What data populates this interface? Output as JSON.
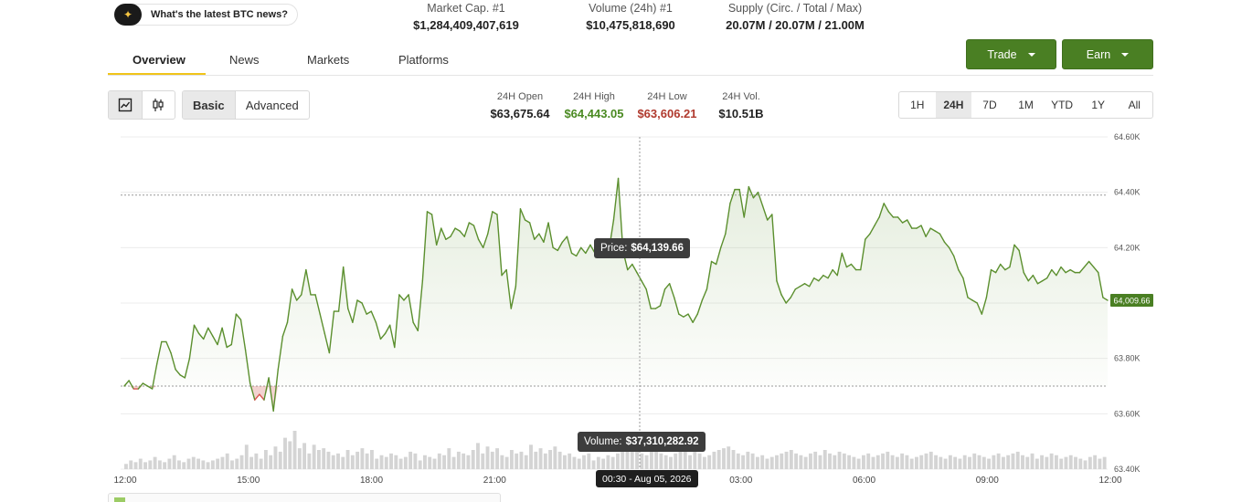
{
  "news_pill": {
    "icon": "sparkle-icon",
    "label": "What's the latest BTC news?"
  },
  "stats": [
    {
      "label": "Market Cap. #1",
      "value": "$1,284,409,407,619"
    },
    {
      "label": "Volume (24h) #1",
      "value": "$10,475,818,690"
    },
    {
      "label": "Supply (Circ. / Total / Max)",
      "value": "20.07M / 20.07M / 21.00M"
    }
  ],
  "tabs": [
    "Overview",
    "News",
    "Markets",
    "Platforms"
  ],
  "active_tab": "Overview",
  "buttons": {
    "trade": "Trade",
    "earn": "Earn"
  },
  "chart_mode": {
    "basic": "Basic",
    "advanced": "Advanced",
    "selected": "Basic"
  },
  "day_stats": [
    {
      "label": "24H Open",
      "value": "$63,675.64",
      "color": "#222222"
    },
    {
      "label": "24H High",
      "value": "$64,443.05",
      "color": "#4a8a22"
    },
    {
      "label": "24H Low",
      "value": "$63,606.21",
      "color": "#c0392b"
    },
    {
      "label": "24H Vol.",
      "value": "$10.51B",
      "color": "#222222"
    }
  ],
  "ranges": [
    "1H",
    "24H",
    "7D",
    "1M",
    "YTD",
    "1Y",
    "All"
  ],
  "selected_range": "24H",
  "colors": {
    "accent": "#4a7f23",
    "line": "#5b8f2e",
    "down": "#d9534f",
    "underline": "#f0c419"
  },
  "tooltips": {
    "price_label": "Price:",
    "price_value": "$64,139.66",
    "volume_label": "Volume:",
    "volume_value": "$37,310,282.92",
    "time": "00:30 - Aug 05, 2026"
  },
  "chart_data": {
    "type": "line",
    "title": "",
    "x_ticks": [
      "12:00",
      "15:00",
      "18:00",
      "21:00",
      "00:00",
      "03:00",
      "06:00",
      "09:00",
      "12:00"
    ],
    "y_ticks": [
      "64.60K",
      "64.40K",
      "64.20K",
      "64.00K",
      "63.80K",
      "63.60K",
      "63.40K"
    ],
    "ylim": [
      63400,
      64600
    ],
    "open": 63700,
    "current_label": "64,009.66",
    "series": [
      {
        "values": [
          63700,
          63720,
          63690,
          63690,
          63710,
          63700,
          63690,
          63780,
          63860,
          63860,
          63820,
          63760,
          63740,
          63730,
          63800,
          63920,
          63890,
          63870,
          63910,
          63880,
          63850,
          63910,
          63840,
          63850,
          63960,
          63940,
          63830,
          63710,
          63650,
          63670,
          63650,
          63730,
          63610,
          63760,
          63880,
          63930,
          64050,
          64010,
          64030,
          64120,
          64030,
          64030,
          63960,
          63890,
          63820,
          63970,
          63970,
          64130,
          63980,
          63930,
          64010,
          64000,
          63960,
          63970,
          63930,
          63870,
          63890,
          63920,
          63840,
          64030,
          64010,
          64030,
          63930,
          63900,
          64080,
          64330,
          64320,
          64210,
          64270,
          64230,
          64240,
          64270,
          64260,
          64240,
          64290,
          64280,
          64230,
          64200,
          64250,
          64330,
          64320,
          64100,
          64120,
          63980,
          64060,
          64340,
          64300,
          64290,
          64230,
          64250,
          64220,
          64290,
          64200,
          64190,
          64220,
          64240,
          64180,
          64170,
          64200,
          64180,
          64210,
          64180,
          64190,
          64210,
          64190,
          64300,
          64450,
          64190,
          64120,
          64140,
          64110,
          64080,
          64050,
          63980,
          63980,
          63990,
          64050,
          64070,
          64020,
          63960,
          63950,
          63960,
          63930,
          63960,
          64010,
          64050,
          64150,
          64140,
          64200,
          64250,
          64360,
          64410,
          64410,
          64310,
          64420,
          64380,
          64400,
          64350,
          64300,
          64320,
          64080,
          64030,
          64000,
          64020,
          64050,
          64060,
          64070,
          64060,
          64090,
          64080,
          64100,
          64090,
          64120,
          64100,
          64180,
          64130,
          64140,
          64120,
          64120,
          64230,
          64250,
          64280,
          64310,
          64360,
          64330,
          64310,
          64310,
          64290,
          64300,
          64270,
          64270,
          64280,
          64240,
          64270,
          64260,
          64250,
          64220,
          64200,
          64170,
          64120,
          64090,
          64020,
          64010,
          64000,
          63960,
          64020,
          64120,
          64110,
          64140,
          64120,
          64130,
          64210,
          64190,
          64110,
          64080,
          64100,
          64070,
          64080,
          64090,
          64120,
          64100,
          64130,
          64110,
          64120,
          64110,
          64110,
          64130,
          64150,
          64130,
          64110,
          64020,
          64010
        ]
      }
    ],
    "volume": [
      3,
      5,
      4,
      6,
      4,
      5,
      7,
      5,
      4,
      6,
      8,
      5,
      4,
      6,
      7,
      6,
      5,
      4,
      5,
      6,
      7,
      9,
      5,
      6,
      8,
      14,
      7,
      9,
      6,
      11,
      8,
      13,
      10,
      18,
      16,
      22,
      12,
      15,
      9,
      14,
      11,
      12,
      10,
      8,
      9,
      7,
      11,
      8,
      10,
      12,
      9,
      11,
      6,
      8,
      7,
      9,
      8,
      6,
      7,
      10,
      9,
      5,
      8,
      7,
      6,
      9,
      8,
      12,
      7,
      10,
      9,
      8,
      11,
      15,
      9,
      13,
      10,
      12,
      8,
      7,
      11,
      9,
      10,
      8,
      14,
      10,
      12,
      9,
      11,
      13,
      10,
      8,
      9,
      7,
      6,
      8,
      9,
      5,
      7,
      6,
      8,
      7,
      9,
      10,
      12,
      14,
      11,
      9,
      8,
      10,
      12,
      9,
      8,
      7,
      9,
      11,
      10,
      8,
      12,
      9,
      7,
      8,
      10,
      11,
      12,
      13,
      11,
      9,
      8,
      10,
      9,
      7,
      8,
      6,
      7,
      8,
      9,
      10,
      11,
      9,
      8,
      7,
      9,
      10,
      8,
      11,
      9,
      8,
      10,
      9,
      8,
      7,
      6,
      8,
      9,
      7,
      8,
      9,
      10,
      8,
      7,
      9,
      8,
      6,
      7,
      8,
      9,
      10,
      8,
      7,
      6,
      8,
      7,
      6,
      8,
      7,
      9,
      8,
      7,
      6,
      8,
      9,
      7,
      8,
      9,
      10,
      8,
      7,
      9,
      6,
      8,
      7,
      9,
      8,
      6,
      7,
      8,
      7,
      6,
      5,
      7,
      8,
      6,
      7
    ]
  }
}
